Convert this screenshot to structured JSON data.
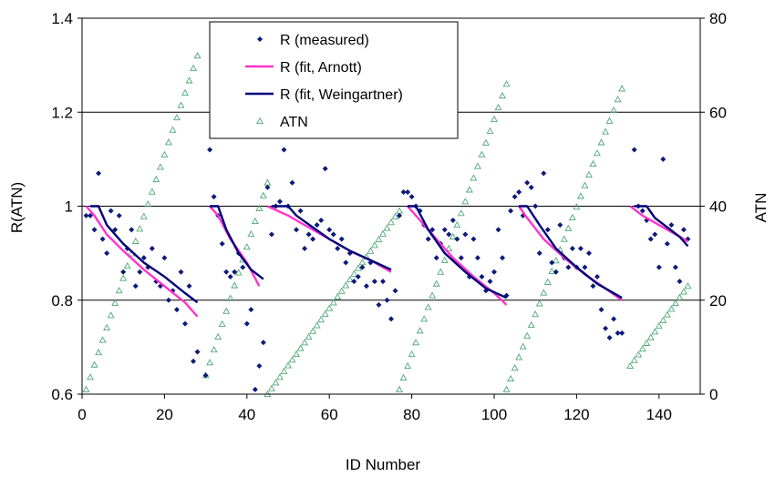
{
  "chart_data": {
    "type": "scatter",
    "xlabel": "ID Number",
    "ylabel": "R(ATN)",
    "y2label": "ATN",
    "xlim": [
      0,
      150
    ],
    "ylim": [
      0.6,
      1.4
    ],
    "y2lim": [
      0,
      80
    ],
    "xticks": [
      0,
      20,
      40,
      60,
      80,
      100,
      120,
      140
    ],
    "yticks": [
      0.6,
      0.8,
      1.0,
      1.2,
      1.4
    ],
    "y2ticks": [
      0,
      20,
      40,
      60,
      80
    ],
    "xtick_labels": [
      "0",
      "20",
      "40",
      "60",
      "80",
      "100",
      "120",
      "140"
    ],
    "ytick_labels": [
      "0.6",
      "0.8",
      "1",
      "1.2",
      "1.4"
    ],
    "y2tick_labels": [
      "0",
      "20",
      "40",
      "60",
      "80"
    ],
    "grid": "horizontal",
    "legend_position": "top-center",
    "colors": {
      "measured": "#0d1a7a",
      "arnott": "#ff33cc",
      "weingartner": "#00007a",
      "atn": "#4fa878"
    },
    "series": [
      {
        "name": "R (measured)",
        "axis": "left",
        "marker": "diamond",
        "points": [
          [
            1,
            0.98
          ],
          [
            2,
            0.98
          ],
          [
            3,
            0.95
          ],
          [
            4,
            1.07
          ],
          [
            5,
            0.93
          ],
          [
            6,
            0.9
          ],
          [
            7,
            0.99
          ],
          [
            8,
            0.95
          ],
          [
            9,
            0.98
          ],
          [
            10,
            0.86
          ],
          [
            11,
            0.91
          ],
          [
            12,
            0.95
          ],
          [
            13,
            0.83
          ],
          [
            14,
            0.86
          ],
          [
            15,
            0.89
          ],
          [
            16,
            0.87
          ],
          [
            17,
            0.91
          ],
          [
            18,
            0.84
          ],
          [
            19,
            0.83
          ],
          [
            20,
            0.89
          ],
          [
            21,
            0.8
          ],
          [
            22,
            0.82
          ],
          [
            23,
            0.78
          ],
          [
            24,
            0.86
          ],
          [
            25,
            0.75
          ],
          [
            26,
            0.83
          ],
          [
            27,
            0.67
          ],
          [
            28,
            0.69
          ],
          [
            30,
            0.64
          ],
          [
            31,
            1.12
          ],
          [
            32,
            1.02
          ],
          [
            33,
            0.98
          ],
          [
            34,
            0.92
          ],
          [
            35,
            0.86
          ],
          [
            36,
            0.85
          ],
          [
            37,
            0.86
          ],
          [
            38,
            0.9
          ],
          [
            39,
            0.87
          ],
          [
            40,
            0.75
          ],
          [
            41,
            0.78
          ],
          [
            42,
            0.61
          ],
          [
            43,
            0.66
          ],
          [
            44,
            0.71
          ],
          [
            45,
            1.04
          ],
          [
            46,
            0.94
          ],
          [
            47,
            1.0
          ],
          [
            48,
            1.01
          ],
          [
            49,
            1.12
          ],
          [
            50,
            1.0
          ],
          [
            51,
            1.05
          ],
          [
            52,
            0.95
          ],
          [
            53,
            0.99
          ],
          [
            54,
            0.91
          ],
          [
            55,
            0.94
          ],
          [
            56,
            0.93
          ],
          [
            57,
            0.96
          ],
          [
            58,
            0.97
          ],
          [
            59,
            1.08
          ],
          [
            60,
            0.95
          ],
          [
            61,
            0.94
          ],
          [
            62,
            0.91
          ],
          [
            63,
            0.93
          ],
          [
            64,
            0.88
          ],
          [
            65,
            0.9
          ],
          [
            66,
            0.84
          ],
          [
            67,
            0.85
          ],
          [
            68,
            0.87
          ],
          [
            69,
            0.83
          ],
          [
            70,
            0.88
          ],
          [
            71,
            0.84
          ],
          [
            72,
            0.79
          ],
          [
            73,
            0.84
          ],
          [
            74,
            0.8
          ],
          [
            75,
            0.76
          ],
          [
            76,
            0.82
          ],
          [
            77,
            0.98
          ],
          [
            78,
            1.03
          ],
          [
            79,
            1.03
          ],
          [
            80,
            1.02
          ],
          [
            81,
            1.0
          ],
          [
            82,
            0.99
          ],
          [
            83,
            0.96
          ],
          [
            84,
            0.93
          ],
          [
            85,
            0.95
          ],
          [
            86,
            0.89
          ],
          [
            87,
            0.92
          ],
          [
            88,
            0.95
          ],
          [
            89,
            0.94
          ],
          [
            90,
            0.97
          ],
          [
            91,
            0.93
          ],
          [
            92,
            0.89
          ],
          [
            93,
            0.94
          ],
          [
            94,
            0.85
          ],
          [
            95,
            0.93
          ],
          [
            96,
            0.89
          ],
          [
            97,
            0.85
          ],
          [
            98,
            0.82
          ],
          [
            99,
            0.84
          ],
          [
            100,
            0.86
          ],
          [
            101,
            0.95
          ],
          [
            102,
            0.89
          ],
          [
            103,
            0.81
          ],
          [
            104,
            0.99
          ],
          [
            105,
            1.02
          ],
          [
            106,
            1.03
          ],
          [
            107,
            0.98
          ],
          [
            108,
            1.05
          ],
          [
            109,
            1.04
          ],
          [
            110,
            1.0
          ],
          [
            111,
            0.9
          ],
          [
            112,
            1.07
          ],
          [
            113,
            0.95
          ],
          [
            114,
            0.88
          ],
          [
            115,
            0.86
          ],
          [
            116,
            0.96
          ],
          [
            117,
            0.89
          ],
          [
            118,
            0.87
          ],
          [
            119,
            0.91
          ],
          [
            120,
            0.87
          ],
          [
            121,
            0.91
          ],
          [
            122,
            0.87
          ],
          [
            123,
            0.9
          ],
          [
            124,
            0.83
          ],
          [
            125,
            0.85
          ],
          [
            126,
            0.78
          ],
          [
            127,
            0.74
          ],
          [
            128,
            0.72
          ],
          [
            129,
            0.76
          ],
          [
            130,
            0.73
          ],
          [
            131,
            0.73
          ],
          [
            134,
            1.12
          ],
          [
            135,
            1.0
          ],
          [
            136,
            0.99
          ],
          [
            137,
            0.97
          ],
          [
            138,
            0.93
          ],
          [
            139,
            0.94
          ],
          [
            140,
            0.87
          ],
          [
            141,
            1.1
          ],
          [
            142,
            0.92
          ],
          [
            143,
            0.96
          ],
          [
            144,
            0.87
          ],
          [
            145,
            0.84
          ],
          [
            146,
            0.95
          ],
          [
            147,
            0.93
          ]
        ]
      },
      {
        "name": "R (fit, Arnott)",
        "axis": "left",
        "style": "line",
        "segments": [
          [
            [
              1,
              1.0
            ],
            [
              3,
              0.98
            ],
            [
              6,
              0.94
            ],
            [
              10,
              0.905
            ],
            [
              15,
              0.865
            ],
            [
              20,
              0.83
            ],
            [
              25,
              0.795
            ],
            [
              28,
              0.765
            ]
          ],
          [
            [
              31,
              1.0
            ],
            [
              33,
              0.98
            ],
            [
              36,
              0.93
            ],
            [
              40,
              0.88
            ],
            [
              43,
              0.83
            ]
          ],
          [
            [
              45,
              1.0
            ],
            [
              50,
              0.98
            ],
            [
              55,
              0.955
            ],
            [
              60,
              0.93
            ],
            [
              65,
              0.905
            ],
            [
              70,
              0.885
            ],
            [
              75,
              0.86
            ]
          ],
          [
            [
              79,
              1.0
            ],
            [
              82,
              0.97
            ],
            [
              86,
              0.93
            ],
            [
              90,
              0.89
            ],
            [
              95,
              0.85
            ],
            [
              100,
              0.815
            ],
            [
              103,
              0.79
            ]
          ],
          [
            [
              106,
              1.0
            ],
            [
              108,
              0.975
            ],
            [
              112,
              0.93
            ],
            [
              117,
              0.89
            ],
            [
              122,
              0.855
            ],
            [
              127,
              0.825
            ],
            [
              131,
              0.8
            ]
          ],
          [
            [
              133,
              1.0
            ],
            [
              136,
              0.98
            ],
            [
              140,
              0.96
            ],
            [
              144,
              0.94
            ],
            [
              147,
              0.925
            ]
          ]
        ]
      },
      {
        "name": "R (fit, Weingartner)",
        "axis": "left",
        "style": "line",
        "segments": [
          [
            [
              2,
              1.0
            ],
            [
              4,
              1.0
            ],
            [
              6,
              0.96
            ],
            [
              10,
              0.92
            ],
            [
              15,
              0.88
            ],
            [
              20,
              0.85
            ],
            [
              25,
              0.815
            ],
            [
              28,
              0.795
            ]
          ],
          [
            [
              31,
              1.0
            ],
            [
              33,
              1.0
            ],
            [
              35,
              0.95
            ],
            [
              38,
              0.9
            ],
            [
              41,
              0.865
            ],
            [
              44,
              0.845
            ]
          ],
          [
            [
              46,
              1.0
            ],
            [
              50,
              1.0
            ],
            [
              52,
              0.98
            ],
            [
              56,
              0.955
            ],
            [
              60,
              0.93
            ],
            [
              65,
              0.905
            ],
            [
              70,
              0.885
            ],
            [
              75,
              0.865
            ]
          ],
          [
            [
              79,
              1.0
            ],
            [
              81,
              1.0
            ],
            [
              84,
              0.95
            ],
            [
              88,
              0.9
            ],
            [
              93,
              0.86
            ],
            [
              98,
              0.825
            ],
            [
              103,
              0.805
            ]
          ],
          [
            [
              106,
              1.0
            ],
            [
              108,
              1.0
            ],
            [
              111,
              0.96
            ],
            [
              115,
              0.91
            ],
            [
              120,
              0.87
            ],
            [
              125,
              0.835
            ],
            [
              131,
              0.805
            ]
          ],
          [
            [
              134,
              1.0
            ],
            [
              137,
              1.0
            ],
            [
              139,
              0.975
            ],
            [
              142,
              0.955
            ],
            [
              145,
              0.935
            ],
            [
              147,
              0.915
            ]
          ]
        ]
      },
      {
        "name": "ATN",
        "axis": "right",
        "marker": "triangle-open",
        "segments": [
          {
            "x_start": 1,
            "x_end": 28,
            "y_start": 1,
            "y_end": 72
          },
          {
            "x_start": 30,
            "x_end": 45,
            "y_start": 4,
            "y_end": 45
          },
          {
            "x_start": 45,
            "x_end": 77,
            "y_start": 0,
            "y_end": 39
          },
          {
            "x_start": 77,
            "x_end": 103,
            "y_start": 1,
            "y_end": 66
          },
          {
            "x_start": 103,
            "x_end": 131,
            "y_start": 1,
            "y_end": 65
          },
          {
            "x_start": 133,
            "x_end": 147,
            "y_start": 6,
            "y_end": 23
          }
        ]
      }
    ]
  }
}
